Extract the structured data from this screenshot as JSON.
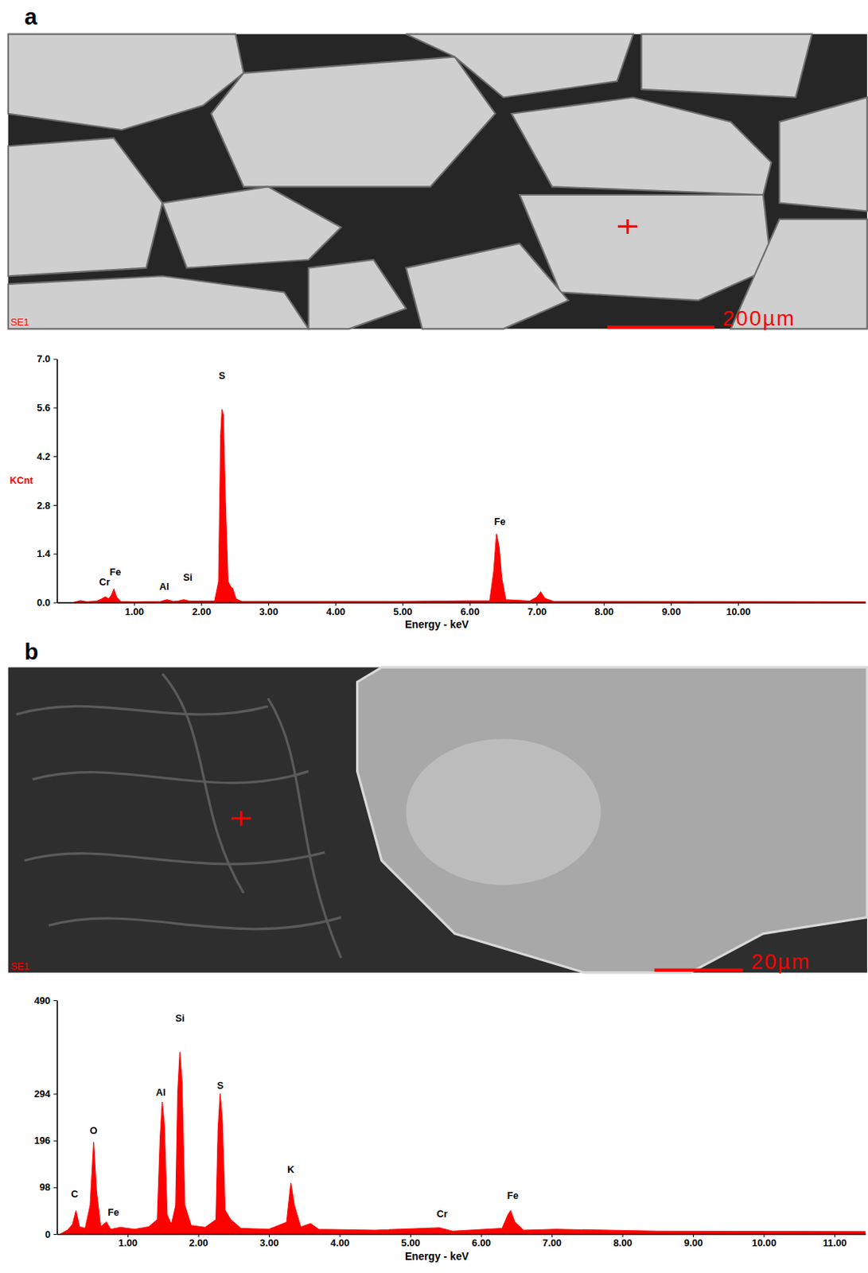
{
  "panels": [
    {
      "letter": "a",
      "image": {
        "detector": "SE1",
        "scale_bar": "200µm"
      }
    },
    {
      "letter": "b",
      "image": {
        "detector": "SE1",
        "scale_bar": "20µm"
      }
    }
  ],
  "chart_data": [
    {
      "type": "area",
      "color": "#ff0000",
      "x_label": "Energy - keV",
      "y_label": "KCnt",
      "xlim": [
        -0.15,
        11.9
      ],
      "ylim": [
        0,
        7
      ],
      "xticks": [
        {
          "value": 1,
          "label": "1.00"
        },
        {
          "value": 2,
          "label": "2.00"
        },
        {
          "value": 3,
          "label": "3.00"
        },
        {
          "value": 4,
          "label": "4.00"
        },
        {
          "value": 5,
          "label": "5.00"
        },
        {
          "value": 6,
          "label": "6.00"
        },
        {
          "value": 7,
          "label": "7.00"
        },
        {
          "value": 8,
          "label": "8.00"
        },
        {
          "value": 9,
          "label": "9.00"
        },
        {
          "value": 10,
          "label": "10.00"
        }
      ],
      "yticks": [
        {
          "value": 0,
          "label": "0.0"
        },
        {
          "value": 1.4,
          "label": "1.4"
        },
        {
          "value": 2.8,
          "label": "2.8"
        },
        {
          "value": 4.2,
          "label": "4.2"
        },
        {
          "value": 5.6,
          "label": "5.6"
        },
        {
          "value": 7,
          "label": "7.0"
        }
      ],
      "x": [
        0.1,
        0.2,
        0.3,
        0.45,
        0.52,
        0.57,
        0.62,
        0.66,
        0.7,
        0.74,
        0.8,
        1.0,
        1.4,
        1.49,
        1.58,
        1.66,
        1.74,
        1.82,
        2.2,
        2.26,
        2.29,
        2.31,
        2.33,
        2.36,
        2.4,
        2.44,
        2.47,
        2.52,
        2.6,
        5.0,
        6.3,
        6.36,
        6.4,
        6.44,
        6.48,
        6.54,
        6.9,
        7.0,
        7.06,
        7.12,
        7.25,
        11.9
      ],
      "values": [
        0.0,
        0.05,
        0.02,
        0.04,
        0.1,
        0.16,
        0.1,
        0.2,
        0.38,
        0.15,
        0.03,
        0.02,
        0.03,
        0.08,
        0.03,
        0.04,
        0.08,
        0.04,
        0.04,
        0.6,
        4.8,
        5.55,
        5.4,
        3.0,
        0.6,
        0.45,
        0.4,
        0.1,
        0.03,
        0.03,
        0.05,
        0.9,
        1.97,
        1.6,
        0.7,
        0.08,
        0.04,
        0.15,
        0.3,
        0.12,
        0.03,
        0.02
      ],
      "annotations": [
        {
          "text": "Cr",
          "x": 0.56,
          "y": 0.49
        },
        {
          "text": "Fe",
          "x": 0.72,
          "y": 0.77
        },
        {
          "text": "Al",
          "x": 1.45,
          "y": 0.37
        },
        {
          "text": "Si",
          "x": 1.8,
          "y": 0.63
        },
        {
          "text": "S",
          "x": 2.31,
          "y": 6.42
        },
        {
          "text": "Fe",
          "x": 6.45,
          "y": 2.22
        }
      ]
    },
    {
      "type": "area",
      "color": "#ff0000",
      "x_label": "Energy - keV",
      "xlim": [
        0,
        11.44
      ],
      "ylim": [
        0,
        490
      ],
      "xticks": [
        {
          "value": 1,
          "label": "1.00"
        },
        {
          "value": 2,
          "label": "2.00"
        },
        {
          "value": 3,
          "label": "3.00"
        },
        {
          "value": 4,
          "label": "4.00"
        },
        {
          "value": 5,
          "label": "5.00"
        },
        {
          "value": 6,
          "label": "6.00"
        },
        {
          "value": 7,
          "label": "7.00"
        },
        {
          "value": 8,
          "label": "8.00"
        },
        {
          "value": 9,
          "label": "9.00"
        },
        {
          "value": 10,
          "label": "10.00"
        },
        {
          "value": 11,
          "label": "11.00"
        }
      ],
      "yticks": [
        0,
        98,
        196,
        294,
        490
      ],
      "x": [
        0.05,
        0.15,
        0.22,
        0.27,
        0.32,
        0.4,
        0.47,
        0.52,
        0.56,
        0.62,
        0.7,
        0.76,
        0.9,
        1.1,
        1.3,
        1.42,
        1.46,
        1.49,
        1.52,
        1.56,
        1.62,
        1.68,
        1.71,
        1.74,
        1.77,
        1.81,
        1.9,
        2.1,
        2.25,
        2.28,
        2.31,
        2.34,
        2.38,
        2.46,
        2.6,
        3.0,
        3.25,
        3.31,
        3.36,
        3.45,
        3.59,
        3.7,
        4.5,
        5.41,
        5.6,
        6.3,
        6.38,
        6.42,
        6.48,
        6.6,
        7.06,
        8.5,
        11.44
      ],
      "values": [
        0,
        8,
        20,
        49,
        15,
        12,
        60,
        193,
        90,
        15,
        25,
        10,
        14,
        10,
        15,
        30,
        200,
        277,
        230,
        40,
        20,
        60,
        300,
        382,
        320,
        60,
        18,
        14,
        30,
        220,
        295,
        240,
        50,
        30,
        12,
        10,
        25,
        107,
        60,
        15,
        22,
        10,
        8,
        13,
        6,
        12,
        40,
        49,
        25,
        8,
        10,
        6,
        5
      ],
      "annotations": [
        {
          "text": "C",
          "x": 0.25,
          "y": 77
        },
        {
          "text": "O",
          "x": 0.52,
          "y": 210
        },
        {
          "text": "Fe",
          "x": 0.8,
          "y": 38
        },
        {
          "text": "Al",
          "x": 1.47,
          "y": 290
        },
        {
          "text": "Si",
          "x": 1.74,
          "y": 445
        },
        {
          "text": "S",
          "x": 2.31,
          "y": 305
        },
        {
          "text": "K",
          "x": 3.31,
          "y": 128
        },
        {
          "text": "Cr",
          "x": 5.45,
          "y": 36
        },
        {
          "text": "Fe",
          "x": 6.45,
          "y": 74
        }
      ]
    }
  ]
}
